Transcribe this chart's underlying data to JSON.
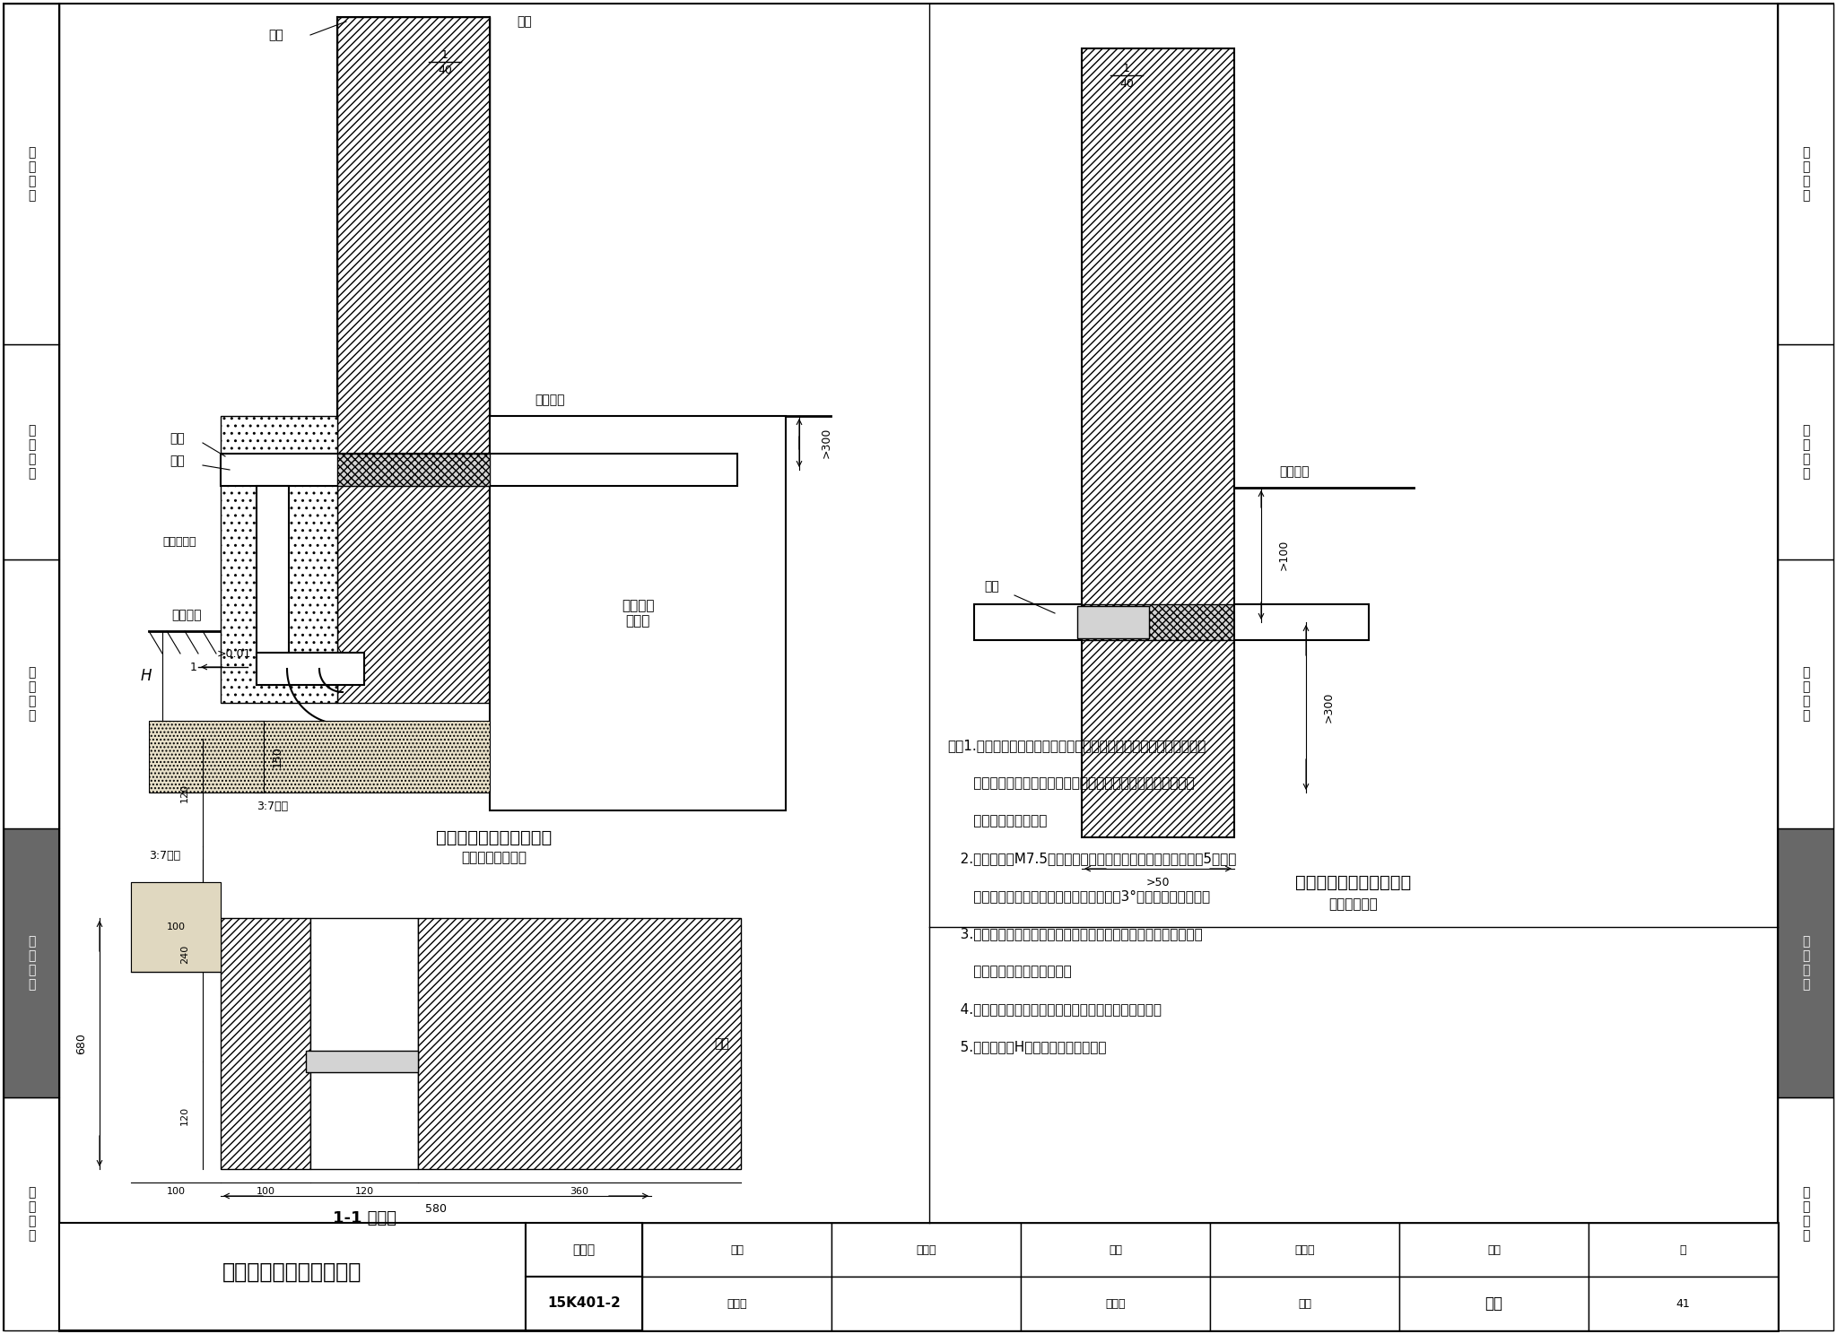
{
  "background": "#ffffff",
  "sidebar_color": "#6d6d6d",
  "sidebar_labels": [
    "设计说明",
    "施工安装",
    "液化气站",
    "电气控制",
    "工程实例"
  ],
  "top_diagram_title": "燃气管道引入做法（二）",
  "top_diagram_subtitle": "（无缝钢管氓弯）",
  "right_diagram_title": "燃气管道引入做法（二）",
  "right_diagram_subtitle": "（镀锌钢管）",
  "section_title": "1-1 剖面图",
  "notes": [
    "注：1.本图为由室外引入室内的燃气管道遇暖气沟或地下室做法大样，",
    "      管材采用无缝钢管氓弯，或采用镀锌钢管管件连接。做加强防",
    "      腐层，砌砖台保护。",
    "   2.砖台内外抹M7.5砂浆，砖台与建筑物外墙应连接严密，每隔5层砖，",
    "      保护台墙体嵌入建筑物墙体内，盖板保持3°倾斜角，坡向室外。",
    "   3.本图若用于高层建筑或软性地基等沉降量较大的情况时，设计中",
    "      应采取适当措施吸收沉降。",
    "   4.当输送湿燃气时，保温台内需填充膨胀珍珠岩保温。",
    "   5.引入口埋深H需根据规范要求确定。"
  ],
  "title_block_main": "燃气管道引入做法（二）",
  "title_atlas_label": "图集号",
  "title_atlas_num": "15K401-2",
  "title_row1": [
    "审核",
    "段洁仪",
    "校对",
    "蔡存占",
    "叁馆长",
    "设计",
    "陈雷",
    "陈宏",
    "页",
    "41"
  ],
  "page": "41"
}
